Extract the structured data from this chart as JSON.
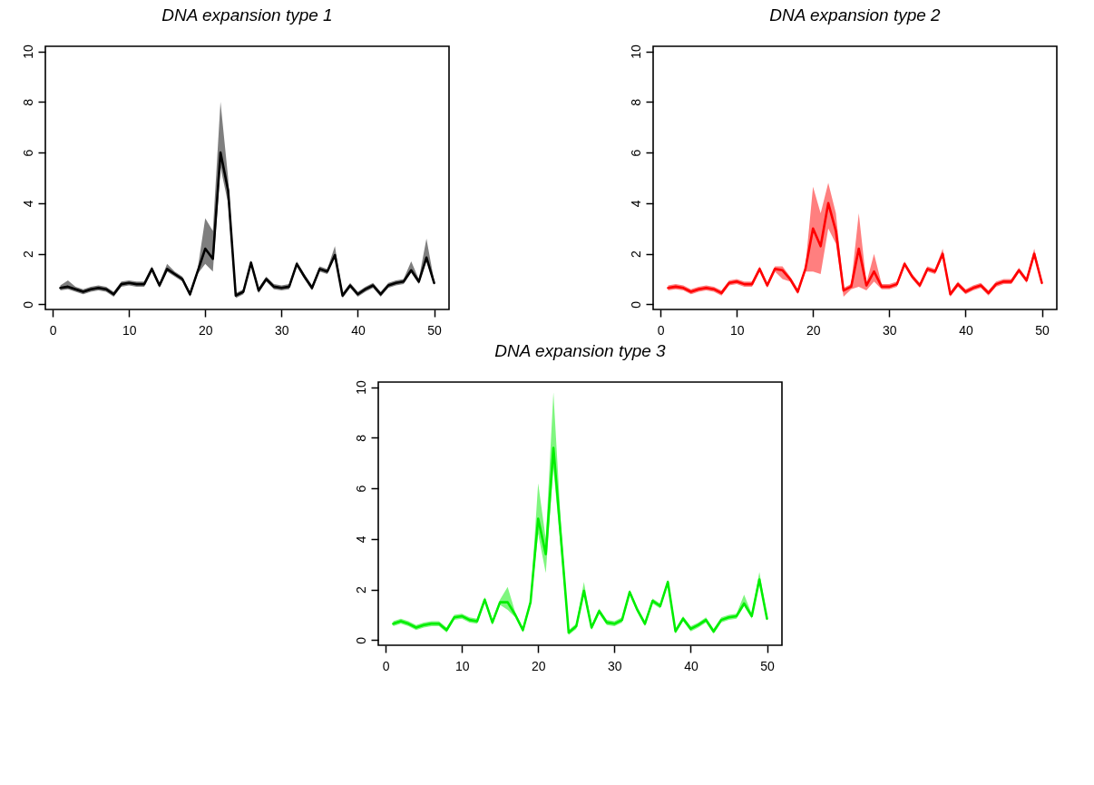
{
  "chart_data": [
    {
      "type": "line",
      "title": "DNA expansion type 1",
      "x": [
        1,
        2,
        3,
        4,
        5,
        6,
        7,
        8,
        9,
        10,
        11,
        12,
        13,
        14,
        15,
        16,
        17,
        18,
        19,
        20,
        21,
        22,
        23,
        24,
        25,
        26,
        27,
        28,
        29,
        30,
        31,
        32,
        33,
        34,
        35,
        36,
        37,
        38,
        39,
        40,
        41,
        42,
        43,
        44,
        45,
        46,
        47,
        48,
        49,
        50
      ],
      "xlim": [
        -0.96,
        51.96
      ],
      "ylim": [
        -0.2,
        10.2
      ],
      "xticks": [
        0,
        10,
        20,
        30,
        40,
        50
      ],
      "yticks": [
        0,
        2,
        4,
        6,
        8,
        10
      ],
      "series": [
        {
          "color": "#000000",
          "values": [
            0.65,
            0.7,
            0.6,
            0.5,
            0.6,
            0.65,
            0.6,
            0.4,
            0.8,
            0.85,
            0.8,
            0.8,
            1.4,
            0.75,
            1.4,
            1.2,
            1.0,
            0.4,
            1.3,
            2.2,
            1.8,
            6.0,
            4.5,
            0.35,
            0.5,
            1.65,
            0.55,
            1.0,
            0.7,
            0.65,
            0.7,
            1.6,
            1.1,
            0.65,
            1.4,
            1.3,
            1.95,
            0.35,
            0.75,
            0.4,
            0.6,
            0.75,
            0.4,
            0.75,
            0.85,
            0.9,
            1.35,
            0.9,
            1.85,
            0.85
          ],
          "lower": [
            0.55,
            0.6,
            0.5,
            0.4,
            0.5,
            0.55,
            0.5,
            0.3,
            0.7,
            0.75,
            0.7,
            0.7,
            1.3,
            0.65,
            1.3,
            1.1,
            0.9,
            0.3,
            1.2,
            1.6,
            1.3,
            5.4,
            4.0,
            0.25,
            0.4,
            1.55,
            0.45,
            0.9,
            0.6,
            0.55,
            0.6,
            1.5,
            1.0,
            0.55,
            1.3,
            1.2,
            1.85,
            0.25,
            0.65,
            0.3,
            0.5,
            0.65,
            0.3,
            0.65,
            0.75,
            0.8,
            1.25,
            0.8,
            1.75,
            0.75
          ],
          "upper": [
            0.75,
            0.95,
            0.7,
            0.6,
            0.7,
            0.75,
            0.7,
            0.5,
            0.9,
            0.95,
            0.9,
            0.9,
            1.5,
            0.85,
            1.6,
            1.3,
            1.1,
            0.5,
            1.4,
            3.4,
            2.9,
            8.0,
            5.0,
            0.45,
            0.6,
            1.75,
            0.65,
            1.1,
            0.8,
            0.75,
            0.8,
            1.7,
            1.2,
            0.75,
            1.5,
            1.4,
            2.3,
            0.45,
            0.85,
            0.5,
            0.7,
            0.85,
            0.5,
            0.85,
            0.95,
            1.0,
            1.7,
            1.0,
            2.6,
            0.95
          ]
        }
      ]
    },
    {
      "type": "line",
      "title": "DNA expansion type 2",
      "x": [
        1,
        2,
        3,
        4,
        5,
        6,
        7,
        8,
        9,
        10,
        11,
        12,
        13,
        14,
        15,
        16,
        17,
        18,
        19,
        20,
        21,
        22,
        23,
        24,
        25,
        26,
        27,
        28,
        29,
        30,
        31,
        32,
        33,
        34,
        35,
        36,
        37,
        38,
        39,
        40,
        41,
        42,
        43,
        44,
        45,
        46,
        47,
        48,
        49,
        50
      ],
      "xlim": [
        -0.96,
        51.96
      ],
      "ylim": [
        -0.2,
        10.2
      ],
      "xticks": [
        0,
        10,
        20,
        30,
        40,
        50
      ],
      "yticks": [
        0,
        2,
        4,
        6,
        8,
        10
      ],
      "series": [
        {
          "color": "#ff0000",
          "values": [
            0.65,
            0.7,
            0.65,
            0.5,
            0.6,
            0.65,
            0.6,
            0.45,
            0.85,
            0.9,
            0.8,
            0.8,
            1.4,
            0.75,
            1.4,
            1.35,
            1.0,
            0.5,
            1.4,
            3.0,
            2.3,
            4.0,
            2.9,
            0.55,
            0.7,
            2.2,
            0.75,
            1.3,
            0.7,
            0.7,
            0.8,
            1.6,
            1.1,
            0.75,
            1.4,
            1.3,
            2.0,
            0.4,
            0.8,
            0.5,
            0.65,
            0.75,
            0.45,
            0.8,
            0.9,
            0.9,
            1.35,
            0.95,
            2.0,
            0.85
          ],
          "lower": [
            0.55,
            0.6,
            0.55,
            0.4,
            0.5,
            0.55,
            0.5,
            0.35,
            0.75,
            0.8,
            0.7,
            0.7,
            1.3,
            0.65,
            1.3,
            1.0,
            0.9,
            0.4,
            1.3,
            1.3,
            1.2,
            3.0,
            2.4,
            0.3,
            0.6,
            0.7,
            0.55,
            0.9,
            0.6,
            0.6,
            0.7,
            1.5,
            1.0,
            0.65,
            1.3,
            1.2,
            1.9,
            0.3,
            0.7,
            0.4,
            0.55,
            0.65,
            0.35,
            0.7,
            0.8,
            0.8,
            1.25,
            0.85,
            1.9,
            0.75
          ],
          "upper": [
            0.75,
            0.8,
            0.75,
            0.6,
            0.7,
            0.75,
            0.7,
            0.55,
            0.95,
            1.0,
            0.9,
            0.9,
            1.5,
            0.85,
            1.5,
            1.5,
            1.1,
            0.6,
            1.5,
            4.65,
            3.6,
            4.8,
            3.6,
            0.65,
            0.8,
            3.6,
            0.85,
            2.0,
            0.8,
            0.8,
            0.9,
            1.7,
            1.2,
            0.85,
            1.5,
            1.4,
            2.2,
            0.5,
            0.9,
            0.6,
            0.75,
            0.85,
            0.55,
            0.9,
            1.0,
            1.0,
            1.45,
            1.05,
            2.2,
            0.95
          ]
        }
      ]
    },
    {
      "type": "line",
      "title": "DNA  expansion type 3",
      "x": [
        1,
        2,
        3,
        4,
        5,
        6,
        7,
        8,
        9,
        10,
        11,
        12,
        13,
        14,
        15,
        16,
        17,
        18,
        19,
        20,
        21,
        22,
        23,
        24,
        25,
        26,
        27,
        28,
        29,
        30,
        31,
        32,
        33,
        34,
        35,
        36,
        37,
        38,
        39,
        40,
        41,
        42,
        43,
        44,
        45,
        46,
        47,
        48,
        49,
        50
      ],
      "xlim": [
        -0.96,
        51.96
      ],
      "ylim": [
        -0.2,
        10.2
      ],
      "xticks": [
        0,
        10,
        20,
        30,
        40,
        50
      ],
      "yticks": [
        0,
        2,
        4,
        6,
        8,
        10
      ],
      "series": [
        {
          "color": "#00ee00",
          "values": [
            0.65,
            0.75,
            0.65,
            0.5,
            0.6,
            0.65,
            0.65,
            0.4,
            0.9,
            0.95,
            0.8,
            0.75,
            1.6,
            0.7,
            1.5,
            1.5,
            1.0,
            0.4,
            1.5,
            4.8,
            3.4,
            7.6,
            4.0,
            0.3,
            0.55,
            1.95,
            0.5,
            1.15,
            0.7,
            0.65,
            0.8,
            1.9,
            1.2,
            0.65,
            1.55,
            1.35,
            2.3,
            0.35,
            0.85,
            0.45,
            0.6,
            0.8,
            0.35,
            0.8,
            0.9,
            0.95,
            1.45,
            0.95,
            2.4,
            0.85
          ],
          "lower": [
            0.55,
            0.65,
            0.55,
            0.4,
            0.5,
            0.55,
            0.55,
            0.3,
            0.8,
            0.85,
            0.7,
            0.65,
            1.5,
            0.6,
            1.4,
            1.2,
            0.9,
            0.3,
            1.4,
            4.2,
            2.65,
            6.8,
            3.5,
            0.2,
            0.45,
            1.85,
            0.4,
            1.05,
            0.6,
            0.55,
            0.7,
            1.8,
            1.1,
            0.55,
            1.45,
            1.25,
            2.2,
            0.25,
            0.75,
            0.35,
            0.5,
            0.7,
            0.25,
            0.7,
            0.8,
            0.85,
            1.35,
            0.85,
            2.3,
            0.75
          ],
          "upper": [
            0.75,
            0.85,
            0.75,
            0.6,
            0.7,
            0.75,
            0.75,
            0.5,
            1.0,
            1.05,
            0.9,
            0.85,
            1.7,
            0.8,
            1.6,
            2.1,
            1.1,
            0.5,
            1.6,
            6.2,
            4.0,
            9.8,
            4.5,
            0.4,
            0.65,
            2.3,
            0.6,
            1.25,
            0.8,
            0.75,
            0.9,
            2.0,
            1.3,
            0.75,
            1.65,
            1.45,
            2.4,
            0.45,
            0.95,
            0.55,
            0.7,
            0.9,
            0.45,
            0.9,
            1.0,
            1.05,
            1.8,
            1.05,
            2.7,
            0.95
          ]
        }
      ]
    }
  ]
}
